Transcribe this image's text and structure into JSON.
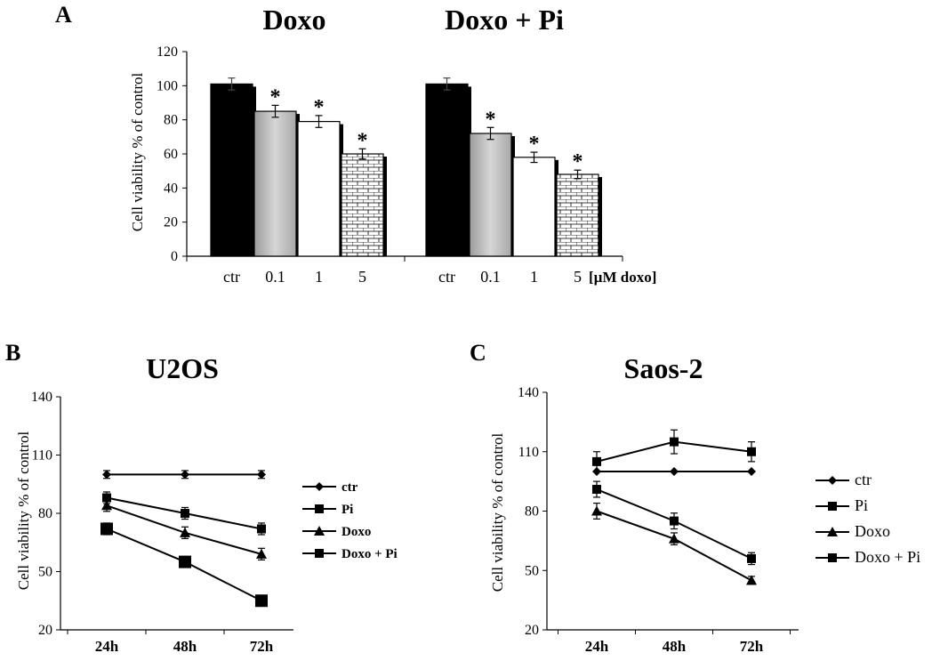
{
  "figure": {
    "panel_labels": [
      "A",
      "B",
      "C"
    ],
    "colors": {
      "ink": "#000000",
      "gray_bar": "#b9b9b9",
      "white_bar": "#ffffff",
      "brick_bar": "#d9d9d9"
    }
  },
  "chart_data": [
    {
      "id": "A",
      "type": "bar",
      "panel_label": "A",
      "ylabel": "Cell viability % of control",
      "ylim": [
        0,
        120
      ],
      "yticks": [
        "0",
        "20",
        "40",
        "60",
        "80",
        "100",
        "120"
      ],
      "unit_label": "[µM doxo]",
      "groups": [
        {
          "title": "Doxo",
          "categories": [
            "ctr",
            "0.1",
            "1",
            "5"
          ],
          "values": [
            101,
            85,
            79,
            60
          ],
          "errors": [
            3.5,
            3.5,
            3.5,
            3
          ],
          "significant": [
            false,
            true,
            true,
            true
          ],
          "fills": [
            "black",
            "gray",
            "white",
            "brick"
          ]
        },
        {
          "title": "Doxo + Pi",
          "categories": [
            "ctr",
            "0.1",
            "1",
            "5"
          ],
          "values": [
            101,
            72,
            58,
            48
          ],
          "errors": [
            3.5,
            3.5,
            3,
            2.5
          ],
          "significant": [
            false,
            true,
            true,
            true
          ],
          "fills": [
            "black",
            "gray",
            "white",
            "brick"
          ]
        }
      ],
      "significance_mark": "*"
    },
    {
      "id": "B",
      "type": "line",
      "panel_label": "B",
      "title": "U2OS",
      "ylabel": "Cell viability % of control",
      "ylim": [
        20,
        140
      ],
      "yticks": [
        "20",
        "50",
        "80",
        "110",
        "140"
      ],
      "categories": [
        "24h",
        "48h",
        "72h"
      ],
      "series": [
        {
          "name": "ctr",
          "values": [
            100,
            100,
            100
          ],
          "errors": [
            2,
            2,
            2
          ],
          "marker": "diamond"
        },
        {
          "name": "Pi",
          "values": [
            88,
            80,
            72
          ],
          "errors": [
            3,
            3,
            3
          ],
          "marker": "square"
        },
        {
          "name": "Doxo",
          "values": [
            84,
            70,
            59
          ],
          "errors": [
            3,
            3,
            3
          ],
          "marker": "triangle"
        },
        {
          "name": "Doxo + Pi",
          "values": [
            72,
            55,
            35
          ],
          "errors": [
            3,
            2,
            2
          ],
          "marker": "square-large"
        }
      ]
    },
    {
      "id": "C",
      "type": "line",
      "panel_label": "C",
      "title": "Saos-2",
      "ylabel": "Cell viability % of control",
      "ylim": [
        20,
        140
      ],
      "yticks": [
        "20",
        "50",
        "80",
        "110",
        "140"
      ],
      "categories": [
        "24h",
        "48h",
        "72h"
      ],
      "series": [
        {
          "name": "ctr",
          "values": [
            100,
            100,
            100
          ],
          "errors": [
            0,
            0,
            0
          ],
          "marker": "diamond"
        },
        {
          "name": "Pi",
          "values": [
            105,
            115,
            110
          ],
          "errors": [
            5,
            6,
            5
          ],
          "marker": "square"
        },
        {
          "name": "Doxo",
          "values": [
            80,
            66,
            45
          ],
          "errors": [
            4,
            3,
            2
          ],
          "marker": "triangle"
        },
        {
          "name": "Doxo + Pi",
          "values": [
            91,
            75,
            56
          ],
          "errors": [
            4,
            4,
            3
          ],
          "marker": "square"
        }
      ]
    }
  ]
}
